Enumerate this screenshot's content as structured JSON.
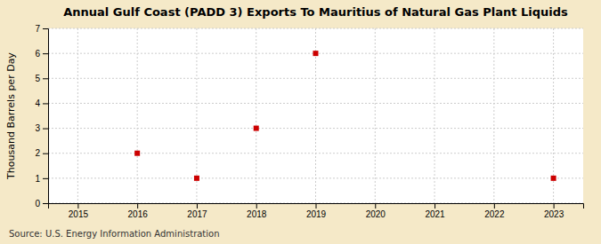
{
  "chart_data": {
    "type": "scatter",
    "title": "Annual Gulf Coast (PADD 3) Exports To Mauritius of Natural Gas Plant Liquids",
    "ylabel": "Thousand Barrels per Day",
    "annotation": "Source: U.S. Energy Information Administration",
    "x": [
      2016,
      2017,
      2018,
      2019,
      2023
    ],
    "values": [
      2,
      1,
      3,
      6,
      1
    ],
    "color": "#cc0000",
    "marker": "square",
    "xlim": [
      2014.5,
      2023.5
    ],
    "ylim": [
      0,
      7
    ],
    "xticks": [
      2015,
      2016,
      2017,
      2018,
      2019,
      2020,
      2021,
      2022,
      2023
    ],
    "yticks": [
      0,
      1,
      2,
      3,
      4,
      5,
      6,
      7
    ],
    "grid": true
  }
}
